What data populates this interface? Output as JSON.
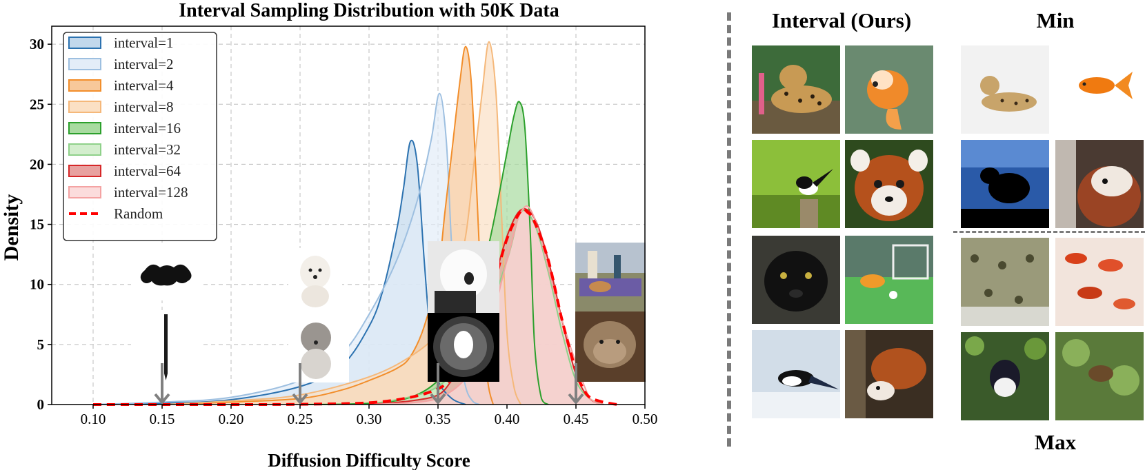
{
  "chart_data": {
    "type": "area",
    "title": "Interval Sampling Distribution with 50K Data",
    "xlabel": "Diffusion Difficulty Score",
    "ylabel": "Density",
    "xlim": [
      0.07,
      0.5
    ],
    "ylim": [
      0,
      31.5
    ],
    "xticks": [
      0.1,
      0.15,
      0.2,
      0.25,
      0.3,
      0.35,
      0.4,
      0.45,
      0.5
    ],
    "yticks": [
      0,
      5,
      10,
      15,
      20,
      25,
      30
    ],
    "grid": true,
    "legend_position": "top-left",
    "series": [
      {
        "name": "interval=1",
        "color": "#2c72b0",
        "fill": "#c2d8ec",
        "points": [
          [
            0.1,
            0
          ],
          [
            0.15,
            0.1
          ],
          [
            0.2,
            0.4
          ],
          [
            0.25,
            1.5
          ],
          [
            0.28,
            3.2
          ],
          [
            0.3,
            6.5
          ],
          [
            0.31,
            9.5
          ],
          [
            0.32,
            14.5
          ],
          [
            0.325,
            18
          ],
          [
            0.33,
            21.9
          ],
          [
            0.335,
            20
          ],
          [
            0.34,
            12
          ],
          [
            0.345,
            5
          ],
          [
            0.35,
            2
          ],
          [
            0.36,
            0.5
          ],
          [
            0.37,
            0
          ]
        ]
      },
      {
        "name": "interval=2",
        "color": "#9dbfe0",
        "fill": "#e3edf8",
        "points": [
          [
            0.1,
            0
          ],
          [
            0.15,
            0.2
          ],
          [
            0.2,
            0.6
          ],
          [
            0.25,
            2.0
          ],
          [
            0.28,
            4.2
          ],
          [
            0.3,
            7.5
          ],
          [
            0.32,
            12
          ],
          [
            0.335,
            17
          ],
          [
            0.345,
            22
          ],
          [
            0.351,
            25.9
          ],
          [
            0.356,
            22
          ],
          [
            0.36,
            13
          ],
          [
            0.365,
            5
          ],
          [
            0.37,
            1.5
          ],
          [
            0.375,
            0.3
          ],
          [
            0.38,
            0
          ]
        ]
      },
      {
        "name": "interval=4",
        "color": "#f28e2b",
        "fill": "#f7c89a",
        "points": [
          [
            0.15,
            0
          ],
          [
            0.2,
            0.2
          ],
          [
            0.25,
            0.5
          ],
          [
            0.28,
            1.2
          ],
          [
            0.3,
            2.0
          ],
          [
            0.32,
            3.0
          ],
          [
            0.33,
            4.0
          ],
          [
            0.34,
            6.5
          ],
          [
            0.35,
            11
          ],
          [
            0.355,
            16
          ],
          [
            0.36,
            21
          ],
          [
            0.366,
            27
          ],
          [
            0.37,
            29.8
          ],
          [
            0.374,
            27
          ],
          [
            0.378,
            18
          ],
          [
            0.382,
            8
          ],
          [
            0.386,
            2
          ],
          [
            0.39,
            0
          ]
        ]
      },
      {
        "name": "interval=8",
        "color": "#f5b87a",
        "fill": "#fbe0c4",
        "points": [
          [
            0.15,
            0
          ],
          [
            0.2,
            0.3
          ],
          [
            0.25,
            0.8
          ],
          [
            0.3,
            2.3
          ],
          [
            0.33,
            4
          ],
          [
            0.35,
            6
          ],
          [
            0.36,
            9
          ],
          [
            0.37,
            14
          ],
          [
            0.376,
            20
          ],
          [
            0.382,
            26
          ],
          [
            0.387,
            30.2
          ],
          [
            0.392,
            26
          ],
          [
            0.396,
            16
          ],
          [
            0.4,
            6
          ],
          [
            0.405,
            1.5
          ],
          [
            0.41,
            0
          ]
        ]
      },
      {
        "name": "interval=16",
        "color": "#2ca02c",
        "fill": "#a8dba0",
        "points": [
          [
            0.25,
            0
          ],
          [
            0.3,
            0.1
          ],
          [
            0.33,
            0.6
          ],
          [
            0.35,
            2
          ],
          [
            0.36,
            4
          ],
          [
            0.37,
            6.5
          ],
          [
            0.38,
            10
          ],
          [
            0.39,
            15
          ],
          [
            0.4,
            21
          ],
          [
            0.405,
            24
          ],
          [
            0.409,
            25.2
          ],
          [
            0.413,
            23
          ],
          [
            0.417,
            14
          ],
          [
            0.42,
            5
          ],
          [
            0.425,
            0.5
          ],
          [
            0.43,
            0
          ]
        ]
      },
      {
        "name": "interval=32",
        "color": "#8fd18a",
        "fill": "#d3eecd",
        "points": [
          [
            0.3,
            0
          ],
          [
            0.35,
            1.5
          ],
          [
            0.38,
            6
          ],
          [
            0.4,
            12
          ],
          [
            0.41,
            16
          ],
          [
            0.42,
            15
          ],
          [
            0.43,
            11
          ],
          [
            0.44,
            6
          ],
          [
            0.45,
            2
          ],
          [
            0.46,
            0.5
          ],
          [
            0.47,
            0
          ]
        ]
      },
      {
        "name": "interval=64",
        "color": "#d62728",
        "fill": "#e8a2a0",
        "points": [
          [
            0.3,
            0
          ],
          [
            0.33,
            0.3
          ],
          [
            0.35,
            0.8
          ],
          [
            0.36,
            2
          ],
          [
            0.37,
            3.5
          ],
          [
            0.38,
            6
          ],
          [
            0.39,
            10
          ],
          [
            0.4,
            14
          ],
          [
            0.41,
            16.2
          ],
          [
            0.42,
            15.5
          ],
          [
            0.43,
            12
          ],
          [
            0.44,
            7
          ],
          [
            0.45,
            2.5
          ],
          [
            0.46,
            0.5
          ],
          [
            0.47,
            0
          ]
        ]
      },
      {
        "name": "interval=128",
        "color": "#f4a3a3",
        "fill": "#fbdcdc",
        "points": [
          [
            0.3,
            0
          ],
          [
            0.35,
            0.5
          ],
          [
            0.38,
            4
          ],
          [
            0.4,
            12
          ],
          [
            0.41,
            16
          ],
          [
            0.42,
            15.5
          ],
          [
            0.44,
            7
          ],
          [
            0.46,
            0.5
          ],
          [
            0.47,
            0
          ]
        ]
      },
      {
        "name": "Random",
        "color": "#ff0000",
        "dashed": true,
        "points": [
          [
            0.1,
            0
          ],
          [
            0.2,
            0
          ],
          [
            0.25,
            0.02
          ],
          [
            0.3,
            0.15
          ],
          [
            0.33,
            0.6
          ],
          [
            0.35,
            1.3
          ],
          [
            0.36,
            2.2
          ],
          [
            0.37,
            3.6
          ],
          [
            0.38,
            6.2
          ],
          [
            0.39,
            9.8
          ],
          [
            0.4,
            13.8
          ],
          [
            0.41,
            16.1
          ],
          [
            0.415,
            16.0
          ],
          [
            0.42,
            15.2
          ],
          [
            0.43,
            12
          ],
          [
            0.44,
            7
          ],
          [
            0.45,
            2.8
          ],
          [
            0.455,
            1.4
          ],
          [
            0.46,
            0.6
          ],
          [
            0.47,
            0.2
          ],
          [
            0.48,
            0
          ]
        ]
      }
    ],
    "annotations": [
      {
        "x": 0.15,
        "label": "arrow"
      },
      {
        "x": 0.25,
        "label": "arrow"
      },
      {
        "x": 0.35,
        "label": "arrow"
      },
      {
        "x": 0.45,
        "label": "arrow"
      }
    ]
  },
  "image_grid": {
    "interval_header": "Interval (Ours)",
    "min_header": "Min",
    "max_footer": "Max",
    "interval_tiles": [
      "leopard",
      "goldfish",
      "magpie-robin",
      "red-panda",
      "black-panther",
      "goldfish-soccer",
      "magpie",
      "red-panda-forest"
    ],
    "min_tiles": [
      "leopard-white-bg",
      "goldfish-white-bg",
      "bird-silhouette",
      "red-panda-closeup"
    ],
    "max_tiles": [
      "leopard-camouflage",
      "goldfish-school",
      "bird-in-tree",
      "red-panda-in-tree"
    ]
  },
  "colors": {
    "axis": "#000000",
    "grid": "#bdbdbd",
    "arrow": "#808080",
    "divider": "#7a7a7a"
  }
}
